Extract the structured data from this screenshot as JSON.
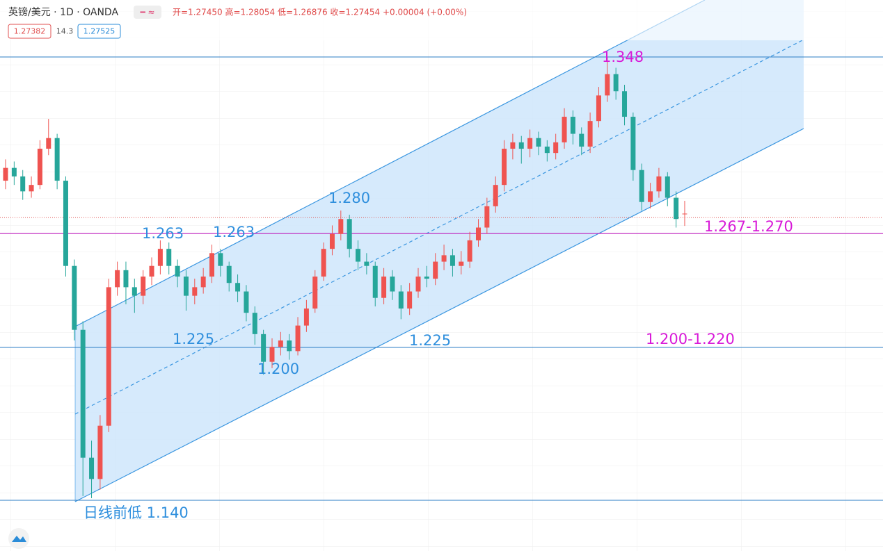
{
  "chart_data": {
    "type": "candlestick",
    "title": "英镑/美元 · 1D · OANDA",
    "ohlc_header": "开=1.27450 高=1.28054 低=1.26876 收=1.27454 +0.00004 (+0.00%)",
    "badges": [
      "1.27382",
      "14.3",
      "1.27525"
    ],
    "annotations": [
      "1.348",
      "1.280",
      "1.263",
      "1.263",
      "1.225",
      "1.225",
      "1.200",
      "日线前低 1.140",
      "1.267-1.270",
      "1.200-1.220"
    ],
    "up_color": "#ef5350",
    "down_color": "#26a69a",
    "ylim": [
      1.1162,
      1.3748
    ],
    "open": [
      1.29,
      1.296,
      1.292,
      1.285,
      1.288,
      1.305,
      1.31,
      1.29,
      1.25,
      1.22,
      1.16,
      1.15,
      1.175,
      1.24,
      1.248,
      1.24,
      1.236,
      1.245,
      1.25,
      1.258,
      1.25,
      1.245,
      1.236,
      1.24,
      1.245,
      1.256,
      1.25,
      1.242,
      1.238,
      1.228,
      1.218,
      1.205,
      1.212,
      1.215,
      1.21,
      1.222,
      1.23,
      1.245,
      1.258,
      1.265,
      1.272,
      1.258,
      1.252,
      1.25,
      1.235,
      1.245,
      1.238,
      1.23,
      1.238,
      1.245,
      1.244,
      1.252,
      1.255,
      1.25,
      1.252,
      1.262,
      1.268,
      1.278,
      1.288,
      1.305,
      1.308,
      1.305,
      1.31,
      1.306,
      1.303,
      1.308,
      1.32,
      1.312,
      1.306,
      1.318,
      1.33,
      1.34,
      1.332,
      1.32,
      1.295,
      1.28,
      1.285,
      1.292,
      1.282,
      1.2745
    ],
    "high": [
      1.3,
      1.299,
      1.295,
      1.292,
      1.309,
      1.319,
      1.312,
      1.292,
      1.253,
      1.224,
      1.168,
      1.18,
      1.244,
      1.252,
      1.252,
      1.244,
      1.248,
      1.254,
      1.262,
      1.261,
      1.253,
      1.248,
      1.244,
      1.249,
      1.26,
      1.258,
      1.252,
      1.246,
      1.241,
      1.231,
      1.22,
      1.216,
      1.219,
      1.218,
      1.226,
      1.234,
      1.248,
      1.261,
      1.269,
      1.276,
      1.274,
      1.262,
      1.256,
      1.252,
      1.249,
      1.248,
      1.241,
      1.242,
      1.249,
      1.25,
      1.256,
      1.26,
      1.258,
      1.257,
      1.266,
      1.272,
      1.282,
      1.292,
      1.309,
      1.312,
      1.311,
      1.314,
      1.313,
      1.309,
      1.312,
      1.324,
      1.323,
      1.315,
      1.322,
      1.334,
      1.348,
      1.343,
      1.335,
      1.322,
      1.298,
      1.289,
      1.296,
      1.294,
      1.285,
      1.28054
    ],
    "low": [
      1.286,
      1.288,
      1.281,
      1.282,
      1.286,
      1.302,
      1.286,
      1.245,
      1.215,
      1.142,
      1.141,
      1.145,
      1.172,
      1.236,
      1.232,
      1.228,
      1.232,
      1.241,
      1.246,
      1.246,
      1.24,
      1.229,
      1.232,
      1.237,
      1.242,
      1.245,
      1.238,
      1.233,
      1.224,
      1.213,
      1.199,
      1.202,
      1.208,
      1.206,
      1.208,
      1.219,
      1.228,
      1.243,
      1.255,
      1.262,
      1.254,
      1.248,
      1.246,
      1.231,
      1.232,
      1.234,
      1.225,
      1.227,
      1.235,
      1.24,
      1.241,
      1.248,
      1.245,
      1.246,
      1.249,
      1.259,
      1.265,
      1.275,
      1.285,
      1.3,
      1.298,
      1.301,
      1.302,
      1.299,
      1.3,
      1.305,
      1.307,
      1.302,
      1.303,
      1.315,
      1.327,
      1.328,
      1.316,
      1.29,
      1.276,
      1.277,
      1.282,
      1.278,
      1.268,
      1.26876
    ],
    "close": [
      1.296,
      1.292,
      1.285,
      1.288,
      1.305,
      1.31,
      1.29,
      1.25,
      1.22,
      1.16,
      1.15,
      1.175,
      1.24,
      1.248,
      1.24,
      1.236,
      1.245,
      1.25,
      1.258,
      1.25,
      1.245,
      1.236,
      1.24,
      1.245,
      1.256,
      1.25,
      1.242,
      1.238,
      1.228,
      1.218,
      1.205,
      1.212,
      1.215,
      1.21,
      1.222,
      1.23,
      1.245,
      1.258,
      1.265,
      1.272,
      1.258,
      1.252,
      1.25,
      1.235,
      1.245,
      1.238,
      1.23,
      1.238,
      1.245,
      1.244,
      1.252,
      1.255,
      1.25,
      1.252,
      1.262,
      1.268,
      1.278,
      1.288,
      1.305,
      1.308,
      1.305,
      1.31,
      1.306,
      1.303,
      1.308,
      1.32,
      1.312,
      1.306,
      1.318,
      1.33,
      1.34,
      1.332,
      1.32,
      1.295,
      1.28,
      1.285,
      1.292,
      1.282,
      1.272,
      1.27454
    ]
  }
}
